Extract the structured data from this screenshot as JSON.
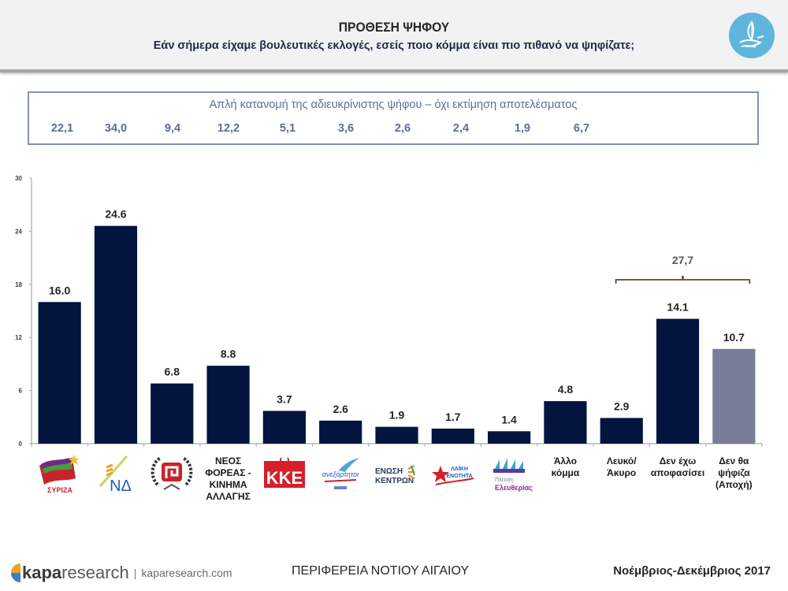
{
  "header": {
    "title": "ΠΡΟΘΕΣΗ ΨΗΦΟΥ",
    "subtitle": "Εάν σήμερα είχαμε βουλευτικές εκλογές, εσείς ποιο κόμμα είναι πιο πιθανό να ψηφίζατε;",
    "logo_icon": "dove-sail-icon"
  },
  "info_box": {
    "title": "Απλή κατανομή της αδιευκρίνιστης ψήφου – όχι εκτίμηση αποτελέσματος",
    "values": [
      "22,1",
      "34,0",
      "9,4",
      "12,2",
      "5,1",
      "3,6",
      "2,6",
      "2,4",
      "1,9",
      "6,7"
    ]
  },
  "chart_data": {
    "type": "bar",
    "title": "ΠΡΟΘΕΣΗ ΨΗΦΟΥ",
    "xlabel": "",
    "ylabel": "",
    "ylim": [
      0,
      30
    ],
    "yticks": [
      0,
      6,
      12,
      18,
      24,
      30
    ],
    "grid": false,
    "categories": [
      "ΣΥΡΙΖΑ",
      "ΝΔ",
      "Χρυσή Αυγή",
      "ΝΕΟΣ ΦΟΡΕΑΣ - ΚΙΝΗΜΑ ΑΛΛΑΓΗΣ",
      "ΚΚΕ",
      "Ανεξάρτητοι Έλληνες",
      "ΕΝΩΣΗ ΚΕΝΤΡΩΝ",
      "Λαϊκή Ενότητα",
      "Πλεύση Ελευθερίας",
      "Άλλο κόμμα",
      "Λευκό/ Άκυρο",
      "Δεν έχω αποφασίσει",
      "Δεν θα ψήφιζα (Αποχή)"
    ],
    "values": [
      16.0,
      24.6,
      6.8,
      8.8,
      3.7,
      2.6,
      1.9,
      1.7,
      1.4,
      4.8,
      2.9,
      14.1,
      10.7
    ],
    "value_labels": [
      "16.0",
      "24.6",
      "6.8",
      "8.8",
      "3.7",
      "2.6",
      "1.9",
      "1.7",
      "1.4",
      "4.8",
      "2.9",
      "14.1",
      "10.7"
    ],
    "colors": [
      "#03143f",
      "#03143f",
      "#03143f",
      "#03143f",
      "#03143f",
      "#03143f",
      "#03143f",
      "#03143f",
      "#03143f",
      "#03143f",
      "#03143f",
      "#03143f",
      "#7a7d99"
    ],
    "bracket": {
      "label": "27,7",
      "from_index": 10,
      "to_index": 12,
      "color": "#5c4a2e"
    },
    "text_labels": {
      "3": [
        "ΝΕΟΣ",
        "ΦΟΡΕΑΣ -",
        "ΚΙΝΗΜΑ",
        "ΑΛΛΑΓΗΣ"
      ],
      "9": [
        "Άλλο",
        "κόμμα"
      ],
      "10": [
        "Λευκό/",
        "Άκυρο"
      ],
      "11": [
        "Δεν έχω",
        "αποφασίσει"
      ],
      "12": [
        "Δεν θα",
        "ψήφιζα",
        "(Αποχή)"
      ]
    },
    "logo_labels": {
      "0": "ΣΥΡΙΖΑ",
      "1": "ΝΔ",
      "4": "ΚΚΕ",
      "5": "ανεξάρτητοι",
      "6": [
        "ΕΝΩΣΗ",
        "ΚΕΝΤΡΩΝ"
      ],
      "7": [
        "ΛΑΪΚΗ",
        "ΕΝΟΤΗΤΑ"
      ],
      "8": [
        "Πλεύση",
        "Ελευθερίας"
      ]
    }
  },
  "footer": {
    "brand_bold": "kapa",
    "brand_light": "research",
    "separator": "|",
    "url": "kaparesearch.com",
    "region": "ΠΕΡΙΦΕΡΕΙΑ ΝΟΤΙΟΥ ΑΙΓΑΙΟΥ",
    "date": "Νοέμβριος-Δεκέμβριος 2017"
  }
}
